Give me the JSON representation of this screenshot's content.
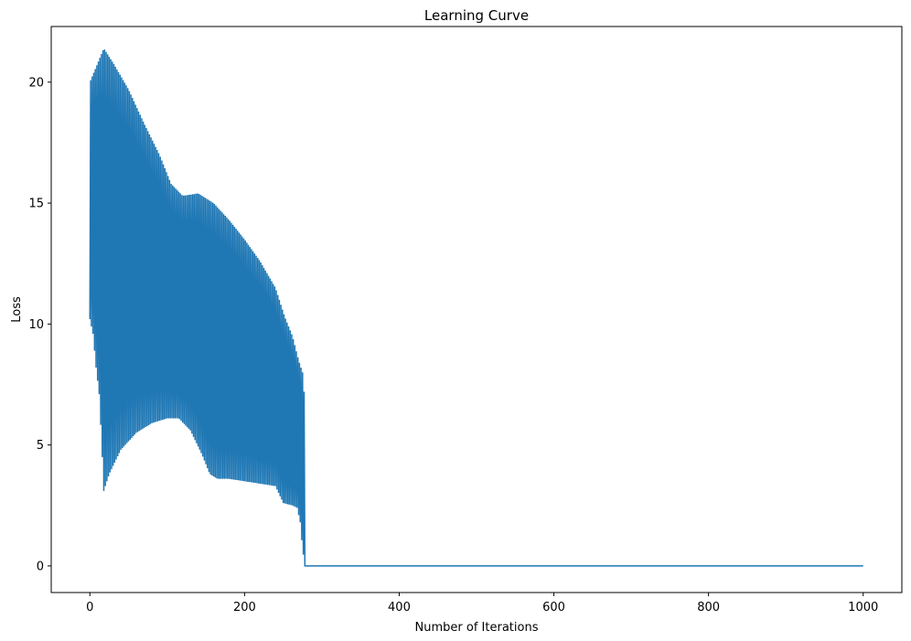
{
  "chart_data": {
    "type": "line",
    "title": "Learning Curve",
    "xlabel": "Number of Iterations",
    "ylabel": "Loss",
    "xlim": [
      -50,
      1050
    ],
    "ylim": [
      -1.1,
      22.3
    ],
    "xticks": [
      0,
      200,
      400,
      600,
      800,
      1000
    ],
    "xtick_labels": [
      "0",
      "200",
      "400",
      "600",
      "800",
      "1000"
    ],
    "yticks": [
      0,
      5,
      10,
      15,
      20
    ],
    "ytick_labels": [
      "0",
      "5",
      "10",
      "15",
      "20"
    ],
    "grid": false,
    "legend": "none",
    "color": "#1f77b4",
    "series": [
      {
        "x_start": 0,
        "x_end": 1000,
        "oscillation_end_iteration": 278,
        "converged_value": 0.0,
        "upper_envelope": [
          [
            0,
            20.0
          ],
          [
            18,
            21.4
          ],
          [
            30,
            20.8
          ],
          [
            50,
            19.7
          ],
          [
            70,
            18.3
          ],
          [
            90,
            17.0
          ],
          [
            105,
            15.8
          ],
          [
            120,
            15.3
          ],
          [
            140,
            15.4
          ],
          [
            160,
            15.0
          ],
          [
            180,
            14.3
          ],
          [
            200,
            13.5
          ],
          [
            220,
            12.6
          ],
          [
            240,
            11.5
          ],
          [
            252,
            10.3
          ],
          [
            262,
            9.5
          ],
          [
            270,
            8.5
          ],
          [
            276,
            7.9
          ],
          [
            278,
            6.5
          ]
        ],
        "lower_envelope": [
          [
            0,
            10.2
          ],
          [
            4,
            9.6
          ],
          [
            8,
            8.2
          ],
          [
            12,
            7.1
          ],
          [
            15,
            5.2
          ],
          [
            18,
            3.1
          ],
          [
            25,
            3.8
          ],
          [
            40,
            4.8
          ],
          [
            60,
            5.5
          ],
          [
            80,
            5.9
          ],
          [
            100,
            6.1
          ],
          [
            115,
            6.1
          ],
          [
            130,
            5.6
          ],
          [
            145,
            4.6
          ],
          [
            155,
            3.8
          ],
          [
            165,
            3.6
          ],
          [
            180,
            3.6
          ],
          [
            200,
            3.5
          ],
          [
            220,
            3.4
          ],
          [
            240,
            3.3
          ],
          [
            250,
            2.6
          ],
          [
            262,
            2.5
          ],
          [
            268,
            2.4
          ],
          [
            272,
            1.8
          ],
          [
            275,
            0.7
          ],
          [
            278,
            0.0
          ]
        ]
      }
    ]
  }
}
